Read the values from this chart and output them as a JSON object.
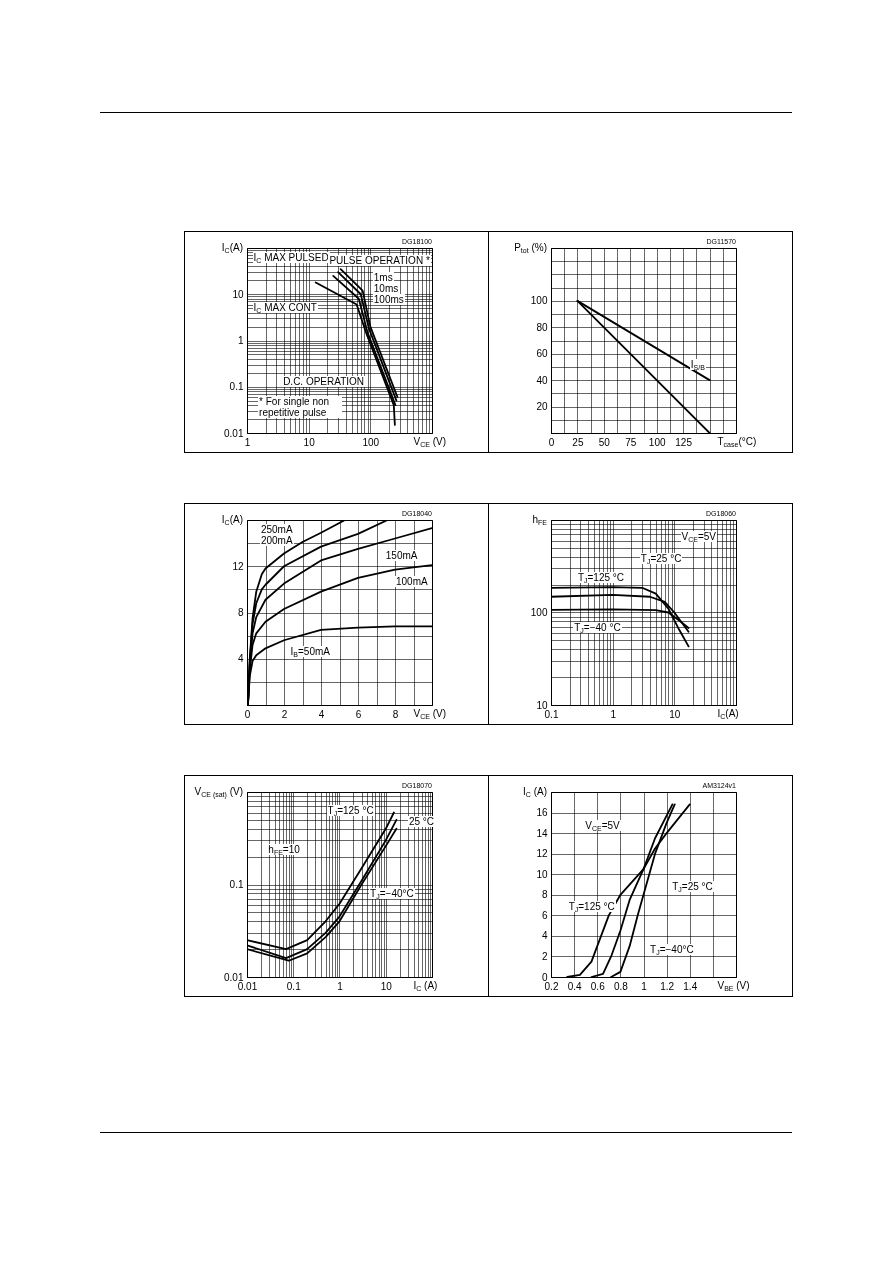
{
  "chart_data": [
    {
      "type": "line",
      "xlabel": "V$_{CE}$ (V)",
      "ylabel": "I$_{C}$(A)",
      "log": "xy",
      "grid": true,
      "xlim": [
        1,
        1000
      ],
      "ylim": [
        0.01,
        100
      ],
      "xticks": [
        1,
        {
          "value": 2,
          "label": null
        },
        {
          "value": 3,
          "label": null
        },
        {
          "value": 4,
          "label": null
        },
        {
          "value": 5,
          "label": null
        },
        {
          "value": 6,
          "label": null
        },
        {
          "value": 7,
          "label": null
        },
        {
          "value": 8,
          "label": null
        },
        {
          "value": 9,
          "label": null
        },
        10,
        {
          "value": 20,
          "label": null
        },
        {
          "value": 30,
          "label": null
        },
        {
          "value": 40,
          "label": null
        },
        {
          "value": 50,
          "label": null
        },
        {
          "value": 60,
          "label": null
        },
        {
          "value": 70,
          "label": null
        },
        {
          "value": 80,
          "label": null
        },
        {
          "value": 90,
          "label": null
        },
        100,
        {
          "value": 200,
          "label": null
        },
        {
          "value": 300,
          "label": null
        },
        {
          "value": 400,
          "label": null
        },
        {
          "value": 500,
          "label": null
        },
        {
          "value": 600,
          "label": null
        },
        {
          "value": 700,
          "label": null
        },
        {
          "value": 800,
          "label": null
        },
        {
          "value": 900,
          "label": null
        },
        {
          "value": 1000,
          "label": null
        }
      ],
      "yticks": [
        0.01,
        {
          "value": 0.02,
          "label": null
        },
        {
          "value": 0.03,
          "label": null
        },
        {
          "value": 0.04,
          "label": null
        },
        {
          "value": 0.05,
          "label": null
        },
        {
          "value": 0.06,
          "label": null
        },
        {
          "value": 0.07,
          "label": null
        },
        {
          "value": 0.08,
          "label": null
        },
        {
          "value": 0.09,
          "label": null
        },
        0.1,
        {
          "value": 0.2,
          "label": null
        },
        {
          "value": 0.3,
          "label": null
        },
        {
          "value": 0.4,
          "label": null
        },
        {
          "value": 0.5,
          "label": null
        },
        {
          "value": 0.6,
          "label": null
        },
        {
          "value": 0.7,
          "label": null
        },
        {
          "value": 0.8,
          "label": null
        },
        {
          "value": 0.9,
          "label": null
        },
        1,
        {
          "value": 2,
          "label": null
        },
        {
          "value": 3,
          "label": null
        },
        {
          "value": 4,
          "label": null
        },
        {
          "value": 5,
          "label": null
        },
        {
          "value": 6,
          "label": null
        },
        {
          "value": 7,
          "label": null
        },
        {
          "value": 8,
          "label": null
        },
        {
          "value": 9,
          "label": null
        },
        10,
        {
          "value": 20,
          "label": null
        },
        {
          "value": 30,
          "label": null
        },
        {
          "value": 40,
          "label": null
        },
        {
          "value": 50,
          "label": null
        },
        {
          "value": 60,
          "label": null
        },
        {
          "value": 70,
          "label": null
        },
        {
          "value": 80,
          "label": null
        },
        {
          "value": 90,
          "label": null
        },
        {
          "value": 100,
          "label": null
        }
      ],
      "series": [
        {
          "color": "#000000",
          "x": [
            13,
            60,
            85,
            240,
            250
          ],
          "values": [
            18,
            6,
            1.5,
            0.04,
            0.015
          ]
        },
        {
          "color": "#000000",
          "x": [
            25,
            65,
            90,
            255
          ],
          "values": [
            25,
            8,
            1.5,
            0.04
          ]
        },
        {
          "color": "#000000",
          "x": [
            30,
            70,
            95,
            265
          ],
          "values": [
            30,
            10,
            1.8,
            0.05
          ]
        },
        {
          "color": "#000000",
          "x": [
            33,
            75,
            100,
            275
          ],
          "values": [
            35,
            12,
            2,
            0.06
          ]
        }
      ],
      "annotations": [
        "DG18100",
        "I$_{C}$ MAX PULSED",
        "PULSE OPERATION *",
        "1ms",
        "10ms",
        "100ms",
        "I$_{C}$ MAX CONT",
        "D.C. OPERATION",
        "* For single non repetitive pulse"
      ]
    },
    {
      "type": "line",
      "xlabel": "T$_{case}$(°C)",
      "ylabel": "P$_{tot}$ (%)",
      "grid": true,
      "xlim": [
        0,
        175
      ],
      "ylim": [
        0,
        140
      ],
      "xticks": [
        0,
        {
          "value": 12.5,
          "label": null
        },
        25,
        {
          "value": 37.5,
          "label": null
        },
        50,
        {
          "value": 62.5,
          "label": null
        },
        75,
        {
          "value": 87.5,
          "label": null
        },
        100,
        {
          "value": 112.5,
          "label": null
        },
        125,
        {
          "value": 137.5,
          "label": null
        },
        {
          "value": 150,
          "label": null
        },
        {
          "value": 162.5,
          "label": null
        },
        {
          "value": 175,
          "label": null
        }
      ],
      "yticks": [
        {
          "value": 0,
          "label": null
        },
        {
          "value": 10,
          "label": null
        },
        20,
        {
          "value": 30,
          "label": null
        },
        40,
        {
          "value": 50,
          "label": null
        },
        60,
        {
          "value": 70,
          "label": null
        },
        80,
        {
          "value": 90,
          "label": null
        },
        100,
        {
          "value": 110,
          "label": null
        },
        {
          "value": 120,
          "label": null
        },
        {
          "value": 130,
          "label": null
        },
        {
          "value": 140,
          "label": null
        }
      ],
      "series": [
        {
          "color": "#000000",
          "x": [
            25,
            150
          ],
          "values": [
            100,
            40
          ]
        },
        {
          "color": "#000000",
          "x": [
            25,
            150
          ],
          "values": [
            100,
            0
          ]
        }
      ],
      "annotations": [
        "DG11570",
        "I$_{S/B}$"
      ]
    },
    {
      "type": "line",
      "xlabel": "V$_{CE}$ (V)",
      "ylabel": "I$_{C}$(A)",
      "grid": true,
      "xlim": [
        0,
        10
      ],
      "ylim": [
        0,
        16
      ],
      "xticks": [
        0,
        {
          "value": 1,
          "label": null
        },
        2,
        {
          "value": 3,
          "label": null
        },
        4,
        {
          "value": 5,
          "label": null
        },
        6,
        {
          "value": 7,
          "label": null
        },
        8,
        {
          "value": 9,
          "label": null
        },
        {
          "value": 10,
          "label": null
        }
      ],
      "yticks": [
        {
          "value": 0,
          "label": null
        },
        {
          "value": 2,
          "label": null
        },
        4,
        {
          "value": 6,
          "label": null
        },
        8,
        {
          "value": 10,
          "label": null
        },
        12,
        {
          "value": 14,
          "label": null
        },
        {
          "value": 16,
          "label": null
        }
      ],
      "series": [
        {
          "color": "#000000",
          "x": [
            0.05,
            0.15,
            0.3,
            0.5,
            0.8,
            1,
            2,
            3,
            4,
            5.3
          ],
          "values": [
            0,
            4,
            7.5,
            9.8,
            11.3,
            11.8,
            13.1,
            14.1,
            14.9,
            16
          ]
        },
        {
          "color": "#000000",
          "x": [
            0.05,
            0.15,
            0.3,
            0.5,
            0.8,
            1,
            2,
            4,
            6,
            7.6
          ],
          "values": [
            0,
            3.8,
            7,
            8.8,
            10,
            10.4,
            12,
            13.7,
            14.8,
            16
          ]
        },
        {
          "color": "#000000",
          "x": [
            0.05,
            0.15,
            0.3,
            0.5,
            1,
            2,
            4,
            6,
            8,
            10
          ],
          "values": [
            0,
            3.5,
            6.2,
            7.6,
            9.1,
            10.5,
            12.5,
            13.5,
            14.4,
            15.3
          ]
        },
        {
          "color": "#000000",
          "x": [
            0.05,
            0.15,
            0.3,
            0.5,
            1,
            2,
            4,
            6,
            8,
            10
          ],
          "values": [
            0,
            3,
            5.2,
            6.2,
            7.2,
            8.3,
            9.8,
            11,
            11.7,
            12.1
          ]
        },
        {
          "color": "#000000",
          "x": [
            0.05,
            0.15,
            0.3,
            0.5,
            1,
            2,
            4,
            6,
            8,
            10
          ],
          "values": [
            0,
            2.5,
            3.8,
            4.3,
            4.9,
            5.6,
            6.5,
            6.7,
            6.8,
            6.8
          ]
        }
      ],
      "annotations": [
        "DG18040",
        "250mA",
        "200mA",
        "150mA",
        "100mA",
        "I$_{B}$=50mA"
      ]
    },
    {
      "type": "line",
      "xlabel": "I$_{C}$(A)",
      "ylabel": "h$_{FE}$",
      "log": "xy",
      "grid": true,
      "xlim": [
        0.1,
        100
      ],
      "ylim": [
        10,
        1000
      ],
      "xticks": [
        0.1,
        {
          "value": 0.2,
          "label": null
        },
        {
          "value": 0.3,
          "label": null
        },
        {
          "value": 0.4,
          "label": null
        },
        {
          "value": 0.5,
          "label": null
        },
        {
          "value": 0.6,
          "label": null
        },
        {
          "value": 0.7,
          "label": null
        },
        {
          "value": 0.8,
          "label": null
        },
        {
          "value": 0.9,
          "label": null
        },
        1,
        {
          "value": 2,
          "label": null
        },
        {
          "value": 3,
          "label": null
        },
        {
          "value": 4,
          "label": null
        },
        {
          "value": 5,
          "label": null
        },
        {
          "value": 6,
          "label": null
        },
        {
          "value": 7,
          "label": null
        },
        {
          "value": 8,
          "label": null
        },
        {
          "value": 9,
          "label": null
        },
        10,
        {
          "value": 20,
          "label": null
        },
        {
          "value": 30,
          "label": null
        },
        {
          "value": 40,
          "label": null
        },
        {
          "value": 50,
          "label": null
        },
        {
          "value": 60,
          "label": null
        },
        {
          "value": 70,
          "label": null
        },
        {
          "value": 80,
          "label": null
        },
        {
          "value": 90,
          "label": null
        },
        {
          "value": 100,
          "label": null
        }
      ],
      "yticks": [
        10,
        {
          "value": 20,
          "label": null
        },
        {
          "value": 30,
          "label": null
        },
        {
          "value": 40,
          "label": null
        },
        {
          "value": 50,
          "label": null
        },
        {
          "value": 60,
          "label": null
        },
        {
          "value": 70,
          "label": null
        },
        {
          "value": 80,
          "label": null
        },
        {
          "value": 90,
          "label": null
        },
        100,
        {
          "value": 200,
          "label": null
        },
        {
          "value": 300,
          "label": null
        },
        {
          "value": 400,
          "label": null
        },
        {
          "value": 500,
          "label": null
        },
        {
          "value": 600,
          "label": null
        },
        {
          "value": 700,
          "label": null
        },
        {
          "value": 800,
          "label": null
        },
        {
          "value": 900,
          "label": null
        },
        {
          "value": 1000,
          "label": null
        }
      ],
      "series": [
        {
          "color": "#000000",
          "x": [
            0.1,
            1,
            3,
            5,
            8,
            12,
            17
          ],
          "values": [
            185,
            188,
            185,
            160,
            110,
            65,
            43
          ]
        },
        {
          "color": "#000000",
          "x": [
            0.1,
            1,
            4,
            7,
            10,
            17
          ],
          "values": [
            148,
            155,
            148,
            130,
            100,
            62
          ]
        },
        {
          "color": "#000000",
          "x": [
            0.1,
            1,
            5,
            8,
            12,
            17
          ],
          "values": [
            107,
            108,
            106,
            100,
            82,
            68
          ]
        }
      ],
      "annotations": [
        "DG18060",
        "V$_{CE}$=5V",
        "T$_{J}$=25 °C",
        "T$_{J}$=125 °C",
        "T$_{J}$=−40 °C"
      ]
    },
    {
      "type": "line",
      "xlabel": "I$_{C}$ (A)",
      "ylabel": "V$_{CE (sat)}$ (V)",
      "log": "xy",
      "grid": true,
      "xlim": [
        0.01,
        100
      ],
      "ylim": [
        0.01,
        1
      ],
      "xticks": [
        0.01,
        {
          "value": 0.02,
          "label": null
        },
        {
          "value": 0.03,
          "label": null
        },
        {
          "value": 0.04,
          "label": null
        },
        {
          "value": 0.05,
          "label": null
        },
        {
          "value": 0.06,
          "label": null
        },
        {
          "value": 0.07,
          "label": null
        },
        {
          "value": 0.08,
          "label": null
        },
        {
          "value": 0.09,
          "label": null
        },
        0.1,
        {
          "value": 0.2,
          "label": null
        },
        {
          "value": 0.3,
          "label": null
        },
        {
          "value": 0.4,
          "label": null
        },
        {
          "value": 0.5,
          "label": null
        },
        {
          "value": 0.6,
          "label": null
        },
        {
          "value": 0.7,
          "label": null
        },
        {
          "value": 0.8,
          "label": null
        },
        {
          "value": 0.9,
          "label": null
        },
        1,
        {
          "value": 2,
          "label": null
        },
        {
          "value": 3,
          "label": null
        },
        {
          "value": 4,
          "label": null
        },
        {
          "value": 5,
          "label": null
        },
        {
          "value": 6,
          "label": null
        },
        {
          "value": 7,
          "label": null
        },
        {
          "value": 8,
          "label": null
        },
        {
          "value": 9,
          "label": null
        },
        10,
        {
          "value": 20,
          "label": null
        },
        {
          "value": 30,
          "label": null
        },
        {
          "value": 40,
          "label": null
        },
        {
          "value": 50,
          "label": null
        },
        {
          "value": 60,
          "label": null
        },
        {
          "value": 70,
          "label": null
        },
        {
          "value": 80,
          "label": null
        },
        {
          "value": 90,
          "label": null
        },
        {
          "value": 100,
          "label": null
        }
      ],
      "yticks": [
        0.01,
        {
          "value": 0.02,
          "label": null
        },
        {
          "value": 0.03,
          "label": null
        },
        {
          "value": 0.04,
          "label": null
        },
        {
          "value": 0.05,
          "label": null
        },
        {
          "value": 0.06,
          "label": null
        },
        {
          "value": 0.07,
          "label": null
        },
        {
          "value": 0.08,
          "label": null
        },
        {
          "value": 0.09,
          "label": null
        },
        0.1,
        {
          "value": 0.2,
          "label": null
        },
        {
          "value": 0.3,
          "label": null
        },
        {
          "value": 0.4,
          "label": null
        },
        {
          "value": 0.5,
          "label": null
        },
        {
          "value": 0.6,
          "label": null
        },
        {
          "value": 0.7,
          "label": null
        },
        {
          "value": 0.8,
          "label": null
        },
        {
          "value": 0.9,
          "label": null
        },
        {
          "value": 1,
          "label": null
        }
      ],
      "series": [
        {
          "color": "#000000",
          "x": [
            0.01,
            0.07,
            0.2,
            0.5,
            1,
            3,
            10,
            15
          ],
          "values": [
            0.025,
            0.02,
            0.025,
            0.04,
            0.062,
            0.15,
            0.4,
            0.6
          ]
        },
        {
          "color": "#000000",
          "x": [
            0.01,
            0.07,
            0.2,
            0.5,
            1,
            3,
            10,
            17
          ],
          "values": [
            0.022,
            0.016,
            0.02,
            0.03,
            0.045,
            0.11,
            0.3,
            0.5
          ]
        },
        {
          "color": "#000000",
          "x": [
            0.01,
            0.08,
            0.2,
            0.5,
            1,
            3,
            10,
            17
          ],
          "values": [
            0.02,
            0.015,
            0.018,
            0.027,
            0.04,
            0.1,
            0.26,
            0.4
          ]
        }
      ],
      "annotations": [
        "DG18070",
        "T$_{J}$=125 °C",
        "25 °C",
        "h$_{FE}$=10",
        "T$_{J}$=−40°C"
      ]
    },
    {
      "type": "line",
      "xlabel": "V$_{BE}$ (V)",
      "ylabel": "I$_{C}$ (A)",
      "grid": true,
      "xlim": [
        0.2,
        1.8
      ],
      "ylim": [
        0,
        18
      ],
      "xticks": [
        0.2,
        0.4,
        0.6,
        0.8,
        1,
        1.2,
        1.4,
        {
          "value": 1.6,
          "label": null
        },
        {
          "value": 1.8,
          "label": null
        }
      ],
      "yticks": [
        0,
        2,
        4,
        6,
        8,
        10,
        12,
        14,
        16,
        {
          "value": 18,
          "label": null
        }
      ],
      "series": [
        {
          "color": "#000000",
          "x": [
            0.34,
            0.45,
            0.55,
            0.6,
            0.7,
            0.8,
            1.0,
            1.1,
            1.2,
            1.4
          ],
          "values": [
            0,
            0.2,
            1.5,
            3,
            6,
            8,
            10.5,
            12.5,
            14,
            16.8
          ]
        },
        {
          "color": "#000000",
          "x": [
            0.55,
            0.65,
            0.72,
            0.8,
            0.88,
            1.0,
            1.1,
            1.25
          ],
          "values": [
            0,
            0.3,
            2,
            4.5,
            7.5,
            10.5,
            13.5,
            16.8
          ]
        },
        {
          "color": "#000000",
          "x": [
            0.72,
            0.8,
            0.88,
            0.95,
            1.0,
            1.1,
            1.2,
            1.27
          ],
          "values": [
            0,
            0.5,
            3,
            6,
            8,
            12,
            15,
            16.8
          ]
        }
      ],
      "annotations": [
        "AM3124v1",
        "V$_{CE}$=5V",
        "T$_{J}$=25 °C",
        "T$_{J}$=125 °C",
        "T$_{J}$=−40°C"
      ]
    }
  ]
}
